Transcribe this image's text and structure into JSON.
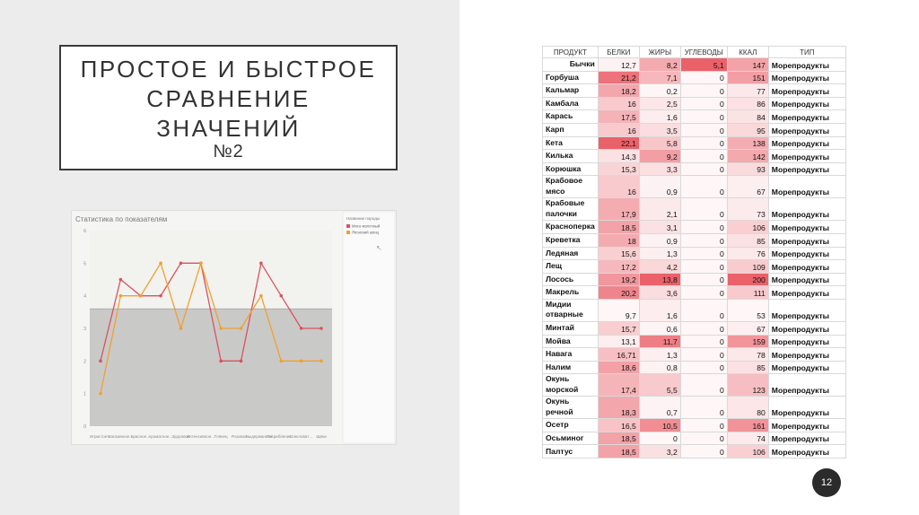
{
  "slide": {
    "title_lines": [
      "ПРОСТОЕ И БЫСТРОЕ",
      "СРАВНЕНИЕ",
      "ЗНАЧЕНИЙ"
    ],
    "title_number": "№2",
    "page_number": "12"
  },
  "colors": {
    "series1": "#d9535f",
    "series2": "#f0a030",
    "shade": "#bbbbbb",
    "heat_dark": "#e8505a",
    "heat_light": "#fbe0e2"
  },
  "chart_data": {
    "type": "line",
    "title": "Статистика по показателям",
    "legend_title": "Название породы",
    "x": [
      "Игристое…",
      "Магазинное…",
      "Красное…",
      "Ароматное…",
      "Здоровое",
      "Интенсивное…",
      "Глянец",
      "Розовое…",
      "Выдержанное…",
      "Потребление…",
      "Стекловат…",
      "Щёки"
    ],
    "series": [
      {
        "name": "Мясо-молочный",
        "color": "#d9535f",
        "values": [
          2.0,
          4.5,
          4.0,
          4.0,
          5.0,
          5.0,
          2.0,
          2.0,
          5.0,
          4.0,
          3.0,
          3.0
        ]
      },
      {
        "name": "Японский шпиц",
        "color": "#f0a030",
        "values": [
          1.0,
          4.0,
          4.0,
          5.0,
          3.0,
          5.0,
          3.0,
          3.0,
          4.0,
          2.0,
          2.0,
          2.0
        ]
      }
    ],
    "ylim": [
      0,
      6
    ],
    "shaded_below": 3.6
  },
  "table": {
    "headers": [
      "ПРОДУКТ",
      "БЕЛКИ",
      "ЖИРЫ",
      "УГЛЕВОДЫ",
      "ККАЛ",
      "ТИП"
    ],
    "rows": [
      {
        "product": "Бычки",
        "protein": "12,7",
        "fat": "8,2",
        "carbs": "5,1",
        "kcal": "147",
        "type": "Морепродукты"
      },
      {
        "product": "Горбуша",
        "protein": "21,2",
        "fat": "7,1",
        "carbs": "0",
        "kcal": "151",
        "type": "Морепродукты"
      },
      {
        "product": "Кальмар",
        "protein": "18,2",
        "fat": "0,2",
        "carbs": "0",
        "kcal": "77",
        "type": "Морепродукты"
      },
      {
        "product": "Камбала",
        "protein": "16",
        "fat": "2,5",
        "carbs": "0",
        "kcal": "86",
        "type": "Морепродукты"
      },
      {
        "product": "Карась",
        "protein": "17,5",
        "fat": "1,6",
        "carbs": "0",
        "kcal": "84",
        "type": "Морепродукты"
      },
      {
        "product": "Карп",
        "protein": "16",
        "fat": "3,5",
        "carbs": "0",
        "kcal": "95",
        "type": "Морепродукты"
      },
      {
        "product": "Кета",
        "protein": "22,1",
        "fat": "5,8",
        "carbs": "0",
        "kcal": "138",
        "type": "Морепродукты"
      },
      {
        "product": "Килька",
        "protein": "14,3",
        "fat": "9,2",
        "carbs": "0",
        "kcal": "142",
        "type": "Морепродукты"
      },
      {
        "product": "Корюшка",
        "protein": "15,3",
        "fat": "3,3",
        "carbs": "0",
        "kcal": "93",
        "type": "Морепродукты"
      },
      {
        "product": "Крабовое мясо",
        "protein": "16",
        "fat": "0,9",
        "carbs": "0",
        "kcal": "67",
        "type": "Морепродукты"
      },
      {
        "product": "Крабовые палочки",
        "protein": "17,9",
        "fat": "2,1",
        "carbs": "0",
        "kcal": "73",
        "type": "Морепродукты"
      },
      {
        "product": "Красноперка",
        "protein": "18,5",
        "fat": "3,1",
        "carbs": "0",
        "kcal": "106",
        "type": "Морепродукты"
      },
      {
        "product": "Креветка",
        "protein": "18",
        "fat": "0,9",
        "carbs": "0",
        "kcal": "85",
        "type": "Морепродукты"
      },
      {
        "product": "Ледяная",
        "protein": "15,6",
        "fat": "1,3",
        "carbs": "0",
        "kcal": "76",
        "type": "Морепродукты"
      },
      {
        "product": "Лещ",
        "protein": "17,2",
        "fat": "4,2",
        "carbs": "0",
        "kcal": "109",
        "type": "Морепродукты"
      },
      {
        "product": "Лосось",
        "protein": "19,2",
        "fat": "13,8",
        "carbs": "0",
        "kcal": "200",
        "type": "Морепродукты"
      },
      {
        "product": "Макрель",
        "protein": "20,2",
        "fat": "3,6",
        "carbs": "0",
        "kcal": "111",
        "type": "Морепродукты"
      },
      {
        "product": "Мидии отварные",
        "protein": "9,7",
        "fat": "1,6",
        "carbs": "0",
        "kcal": "53",
        "type": "Морепродукты"
      },
      {
        "product": "Минтай",
        "protein": "15,7",
        "fat": "0,6",
        "carbs": "0",
        "kcal": "67",
        "type": "Морепродукты"
      },
      {
        "product": "Мойва",
        "protein": "13,1",
        "fat": "11,7",
        "carbs": "0",
        "kcal": "159",
        "type": "Морепродукты"
      },
      {
        "product": "Навага",
        "protein": "16,71",
        "fat": "1,3",
        "carbs": "0",
        "kcal": "78",
        "type": "Морепродукты"
      },
      {
        "product": "Налим",
        "protein": "18,6",
        "fat": "0,8",
        "carbs": "0",
        "kcal": "85",
        "type": "Морепродукты"
      },
      {
        "product": "Окунь морской",
        "protein": "17,4",
        "fat": "5,5",
        "carbs": "0",
        "kcal": "123",
        "type": "Морепродукты"
      },
      {
        "product": "Окунь речной",
        "protein": "18,3",
        "fat": "0,7",
        "carbs": "0",
        "kcal": "80",
        "type": "Морепродукты"
      },
      {
        "product": "Осетр",
        "protein": "16,5",
        "fat": "10,5",
        "carbs": "0",
        "kcal": "161",
        "type": "Морепродукты"
      },
      {
        "product": "Осьминог",
        "protein": "18,5",
        "fat": "0",
        "carbs": "0",
        "kcal": "74",
        "type": "Морепродукты"
      },
      {
        "product": "Палтус",
        "protein": "18,5",
        "fat": "3,2",
        "carbs": "0",
        "kcal": "106",
        "type": "Морепродукты"
      }
    ]
  }
}
